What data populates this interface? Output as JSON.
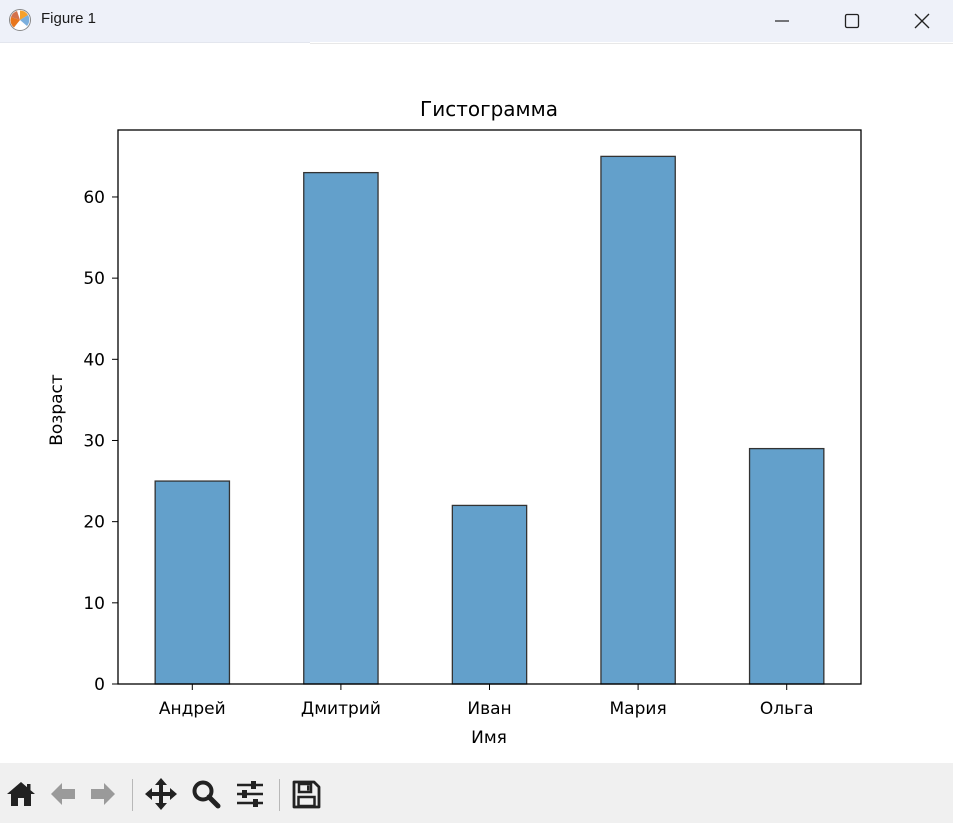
{
  "window": {
    "title": "Figure 1",
    "controls": [
      "minimize",
      "maximize",
      "close"
    ]
  },
  "chart_data": {
    "type": "bar",
    "title": "Гистограмма",
    "xlabel": "Имя",
    "ylabel": "Возраст",
    "categories": [
      "Андрей",
      "Дмитрий",
      "Иван",
      "Мария",
      "Ольга"
    ],
    "values": [
      25,
      63,
      22,
      65,
      29
    ],
    "ylim": [
      0,
      68.25
    ],
    "yticks": [
      0,
      10,
      20,
      30,
      40,
      50,
      60
    ],
    "bar_color": "#63a0cb",
    "edge_color": "#333333",
    "grid": false
  },
  "toolbar": {
    "icons": [
      "home-icon",
      "back-arrow-icon",
      "forward-arrow-icon",
      "pan-icon",
      "zoom-icon",
      "configure-subplots-icon",
      "save-icon"
    ]
  }
}
